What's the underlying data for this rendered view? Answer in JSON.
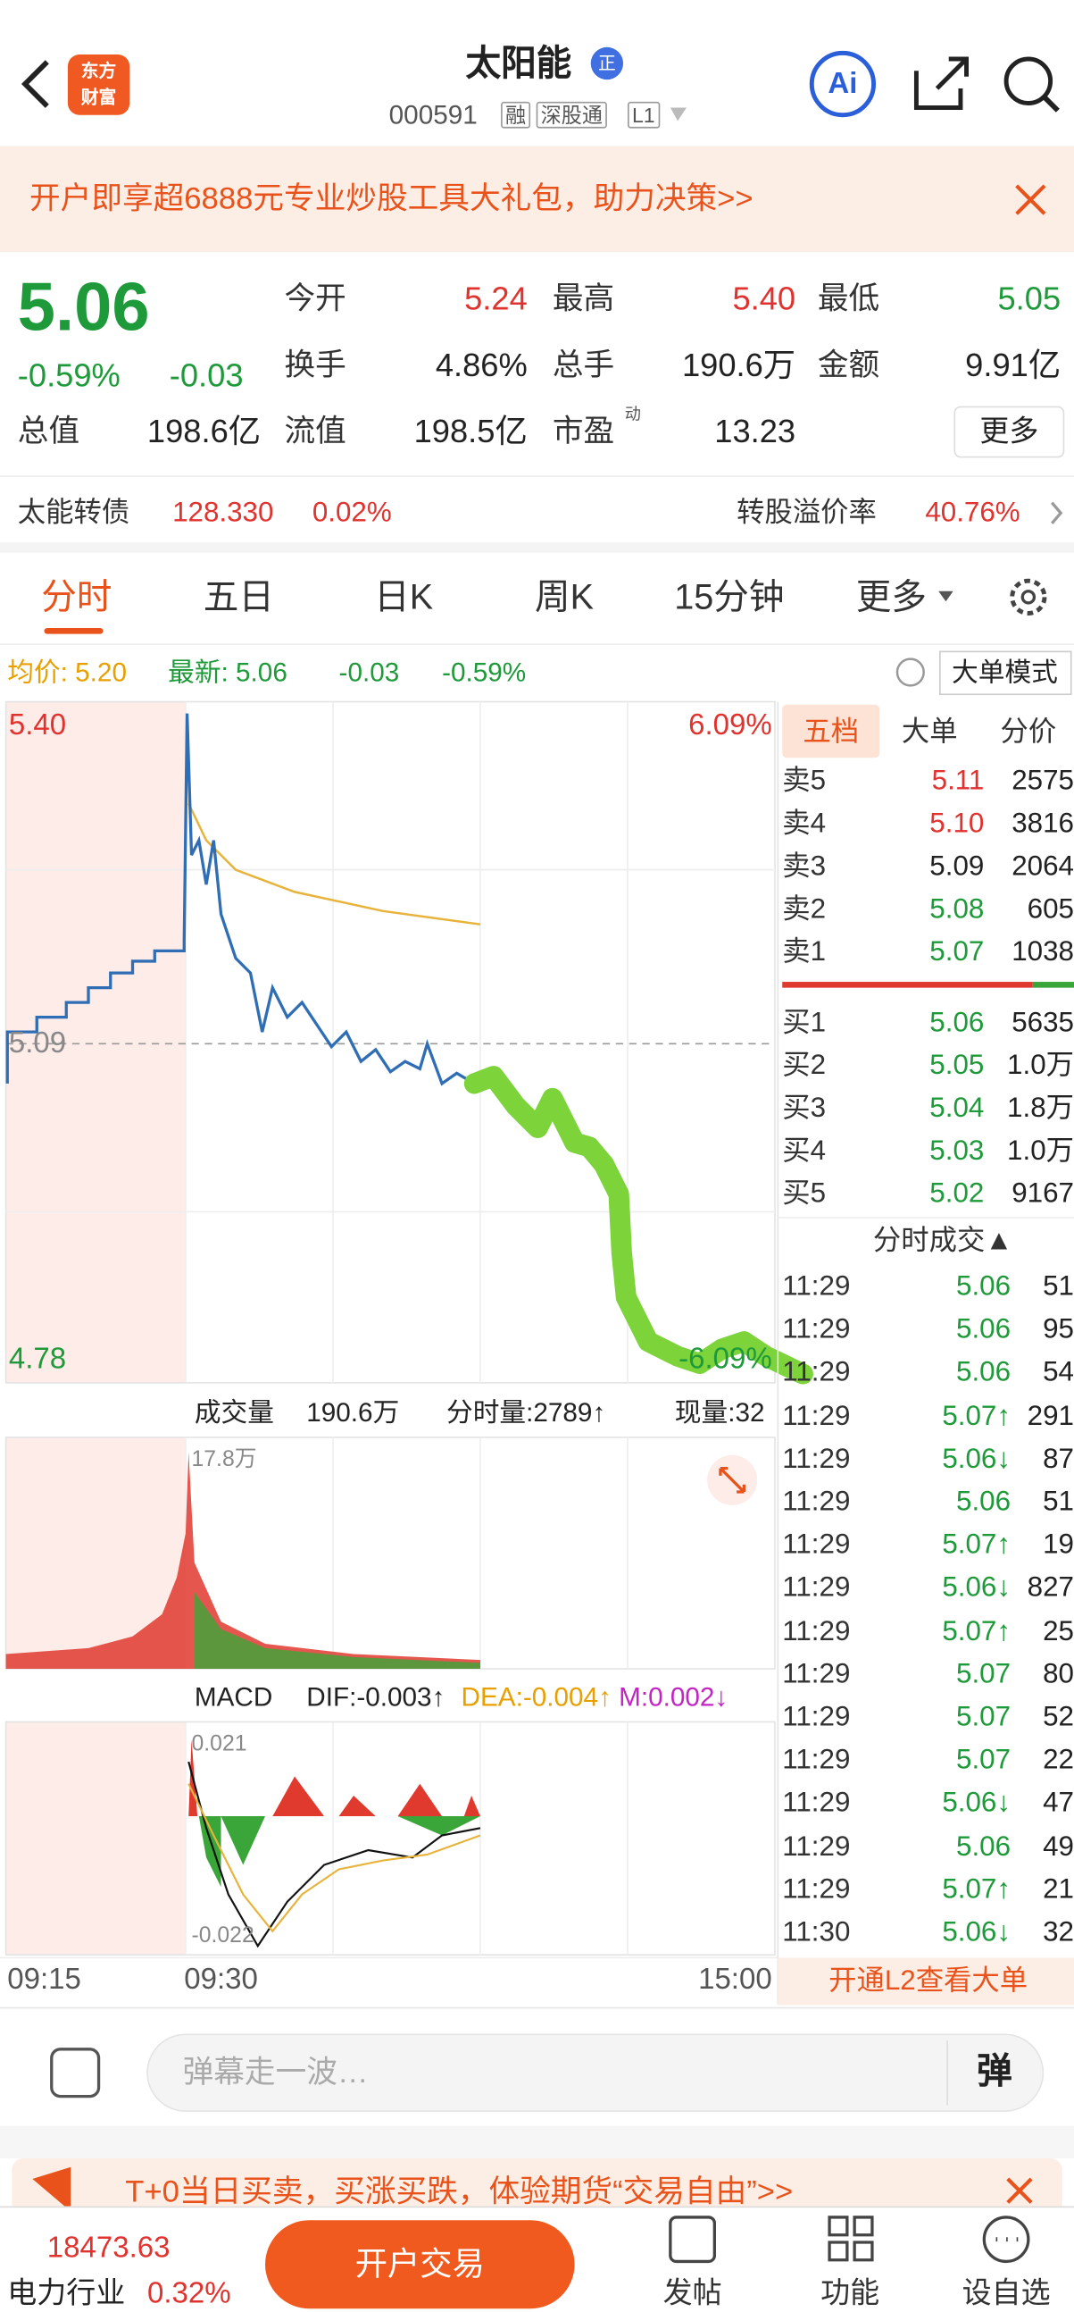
{
  "header": {
    "title": "太阳能",
    "badge": "正",
    "code": "000591",
    "tags": [
      "融",
      "深股通",
      "L1"
    ],
    "logo": [
      "东方",
      "财富"
    ],
    "ai": "Ai"
  },
  "banner": "开户即享超6888元专业炒股工具大礼包，助力决策>>",
  "quote": {
    "price": "5.06",
    "change_pct": "-0.59%",
    "change": "-0.03",
    "stats": [
      [
        "今开",
        "5.24"
      ],
      [
        "最高",
        "5.40"
      ],
      [
        "最低",
        "5.05"
      ],
      [
        "换手",
        "4.86%"
      ],
      [
        "总手",
        "190.6万"
      ],
      [
        "金额",
        "9.91亿"
      ],
      [
        "总值",
        "198.6亿"
      ],
      [
        "流值",
        "198.5亿"
      ],
      [
        "市盈",
        "13.23"
      ]
    ],
    "pe_sup": "动",
    "more": "更多"
  },
  "bond": {
    "name": "太能转债",
    "price": "128.330",
    "pct": "0.02%",
    "premium_label": "转股溢价率",
    "premium": "40.76%"
  },
  "tabs": [
    "分时",
    "五日",
    "日K",
    "周K",
    "15分钟",
    "更多"
  ],
  "legend": {
    "avg": "均价: 5.20",
    "latest": "最新: 5.06",
    "change": "-0.03",
    "pct": "-0.59%",
    "mode": "大单模式"
  },
  "chart": {
    "y_top": "5.40",
    "y_mid": "5.09",
    "y_bottom": "4.78",
    "pct_top": "6.09%",
    "pct_bottom": "-6.09%",
    "x_labels": [
      "09:15",
      "09:30",
      "15:00"
    ]
  },
  "volume": {
    "label": "成交量",
    "total": "190.6万",
    "period": "分时量:2789↑",
    "now": "现量:32",
    "max": "17.8万"
  },
  "macd": {
    "label": "MACD",
    "dif": "DIF:-0.003↑",
    "dea": "DEA:-0.004↑",
    "m": "M:0.002↓",
    "top": "0.021",
    "bottom": "-0.022"
  },
  "book": {
    "tabs": [
      "五档",
      "大单",
      "分价"
    ],
    "asks": [
      [
        "卖5",
        "5.11",
        "2575"
      ],
      [
        "卖4",
        "5.10",
        "3816"
      ],
      [
        "卖3",
        "5.09",
        "2064"
      ],
      [
        "卖2",
        "5.08",
        "605"
      ],
      [
        "卖1",
        "5.07",
        "1038"
      ]
    ],
    "bids": [
      [
        "买1",
        "5.06",
        "5635"
      ],
      [
        "买2",
        "5.05",
        "1.0万"
      ],
      [
        "买3",
        "5.04",
        "1.8万"
      ],
      [
        "买4",
        "5.03",
        "1.0万"
      ],
      [
        "买5",
        "5.02",
        "9167"
      ]
    ]
  },
  "trades": {
    "title": "分时成交▲",
    "rows": [
      [
        "11:29",
        "5.06",
        "51"
      ],
      [
        "11:29",
        "5.06",
        "95"
      ],
      [
        "11:29",
        "5.06",
        "54"
      ],
      [
        "11:29",
        "5.07↑",
        "291"
      ],
      [
        "11:29",
        "5.06↓",
        "87"
      ],
      [
        "11:29",
        "5.06",
        "51"
      ],
      [
        "11:29",
        "5.07↑",
        "19"
      ],
      [
        "11:29",
        "5.06↓",
        "827"
      ],
      [
        "11:29",
        "5.07↑",
        "25"
      ],
      [
        "11:29",
        "5.07",
        "80"
      ],
      [
        "11:29",
        "5.07",
        "52"
      ],
      [
        "11:29",
        "5.07",
        "22"
      ],
      [
        "11:29",
        "5.06↓",
        "47"
      ],
      [
        "11:29",
        "5.06",
        "49"
      ],
      [
        "11:29",
        "5.07↑",
        "21"
      ],
      [
        "11:30",
        "5.06↓",
        "32"
      ]
    ]
  },
  "l2": "开通L2查看大单",
  "comment": {
    "placeholder": "弹幕走一波…",
    "button": "弹"
  },
  "promo": "T+0当日买卖，买涨买跌，体验期货“交易自由”>>",
  "bottom": {
    "index": "18473.63",
    "sector": "电力行业",
    "sector_pct": "0.32%",
    "trade": "开户交易",
    "items": [
      "发帖",
      "功能",
      "设自选"
    ]
  }
}
